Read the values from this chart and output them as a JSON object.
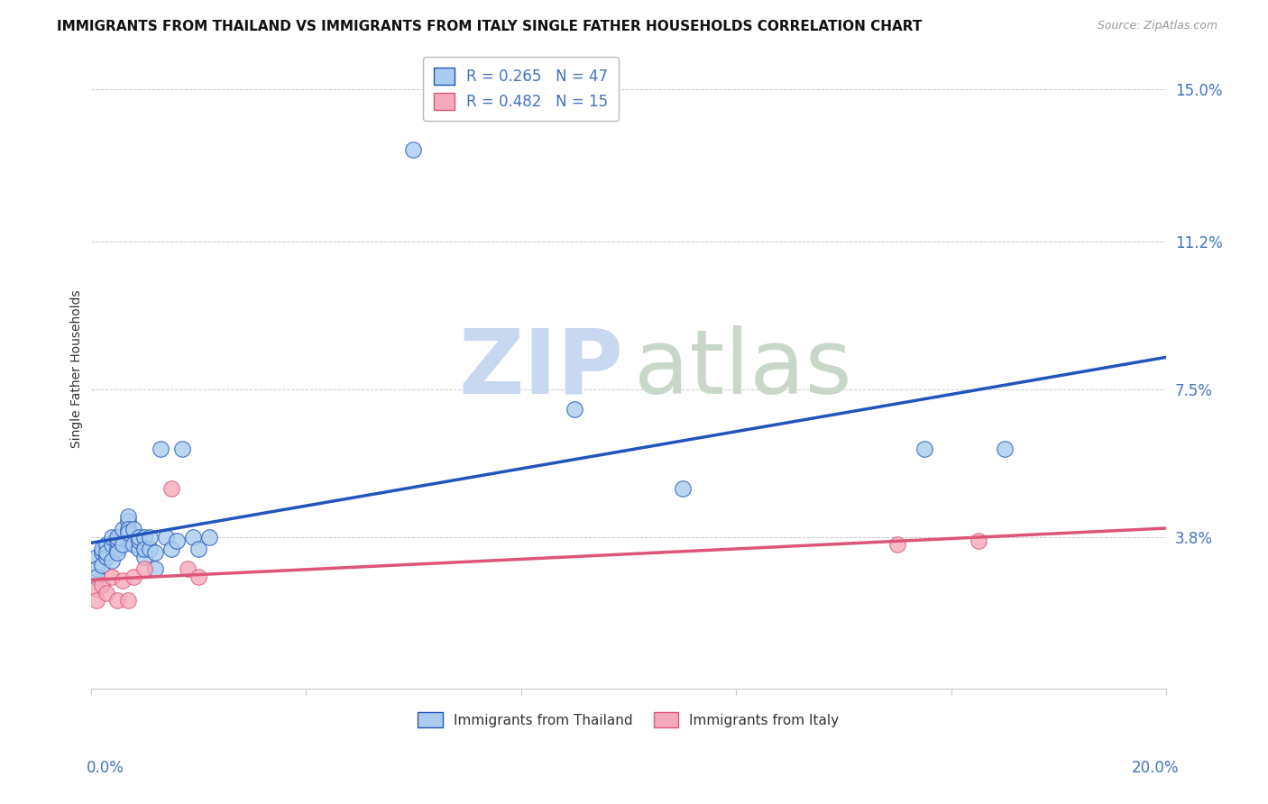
{
  "title": "IMMIGRANTS FROM THAILAND VS IMMIGRANTS FROM ITALY SINGLE FATHER HOUSEHOLDS CORRELATION CHART",
  "source": "Source: ZipAtlas.com",
  "ylabel": "Single Father Households",
  "yticks": [
    0.0,
    0.038,
    0.075,
    0.112,
    0.15
  ],
  "ytick_labels": [
    "",
    "3.8%",
    "7.5%",
    "11.2%",
    "15.0%"
  ],
  "xlim": [
    0.0,
    0.2
  ],
  "ylim": [
    0.0,
    0.16
  ],
  "thailand_scatter": [
    [
      0.001,
      0.033
    ],
    [
      0.001,
      0.03
    ],
    [
      0.001,
      0.028
    ],
    [
      0.002,
      0.034
    ],
    [
      0.002,
      0.031
    ],
    [
      0.002,
      0.035
    ],
    [
      0.003,
      0.033
    ],
    [
      0.003,
      0.036
    ],
    [
      0.003,
      0.034
    ],
    [
      0.004,
      0.036
    ],
    [
      0.004,
      0.038
    ],
    [
      0.004,
      0.032
    ],
    [
      0.005,
      0.035
    ],
    [
      0.005,
      0.037
    ],
    [
      0.005,
      0.038
    ],
    [
      0.005,
      0.034
    ],
    [
      0.006,
      0.036
    ],
    [
      0.006,
      0.04
    ],
    [
      0.007,
      0.042
    ],
    [
      0.007,
      0.043
    ],
    [
      0.007,
      0.04
    ],
    [
      0.007,
      0.039
    ],
    [
      0.008,
      0.04
    ],
    [
      0.008,
      0.036
    ],
    [
      0.009,
      0.035
    ],
    [
      0.009,
      0.037
    ],
    [
      0.009,
      0.038
    ],
    [
      0.01,
      0.033
    ],
    [
      0.01,
      0.038
    ],
    [
      0.01,
      0.035
    ],
    [
      0.011,
      0.035
    ],
    [
      0.011,
      0.038
    ],
    [
      0.012,
      0.03
    ],
    [
      0.012,
      0.034
    ],
    [
      0.013,
      0.06
    ],
    [
      0.014,
      0.038
    ],
    [
      0.015,
      0.035
    ],
    [
      0.016,
      0.037
    ],
    [
      0.017,
      0.06
    ],
    [
      0.019,
      0.038
    ],
    [
      0.02,
      0.035
    ],
    [
      0.022,
      0.038
    ],
    [
      0.06,
      0.135
    ],
    [
      0.09,
      0.07
    ],
    [
      0.11,
      0.05
    ],
    [
      0.155,
      0.06
    ],
    [
      0.17,
      0.06
    ]
  ],
  "italy_scatter": [
    [
      0.001,
      0.025
    ],
    [
      0.001,
      0.022
    ],
    [
      0.002,
      0.026
    ],
    [
      0.003,
      0.024
    ],
    [
      0.004,
      0.028
    ],
    [
      0.005,
      0.022
    ],
    [
      0.006,
      0.027
    ],
    [
      0.007,
      0.022
    ],
    [
      0.008,
      0.028
    ],
    [
      0.01,
      0.03
    ],
    [
      0.015,
      0.05
    ],
    [
      0.018,
      0.03
    ],
    [
      0.02,
      0.028
    ],
    [
      0.15,
      0.036
    ],
    [
      0.165,
      0.037
    ]
  ],
  "thailand_line_color": "#2255bb",
  "italy_line_color": "#dd5577",
  "thailand_scatter_color": "#aaccee",
  "italy_scatter_color": "#f5aabb",
  "grid_color": "#cccccc",
  "R_thailand": 0.265,
  "N_thailand": 47,
  "R_italy": 0.482,
  "N_italy": 15,
  "title_fontsize": 11,
  "legend_box_color_t": "#aaccee",
  "legend_box_edge_t": "#2255bb",
  "legend_box_color_i": "#f5aabb",
  "legend_box_edge_i": "#dd5577"
}
